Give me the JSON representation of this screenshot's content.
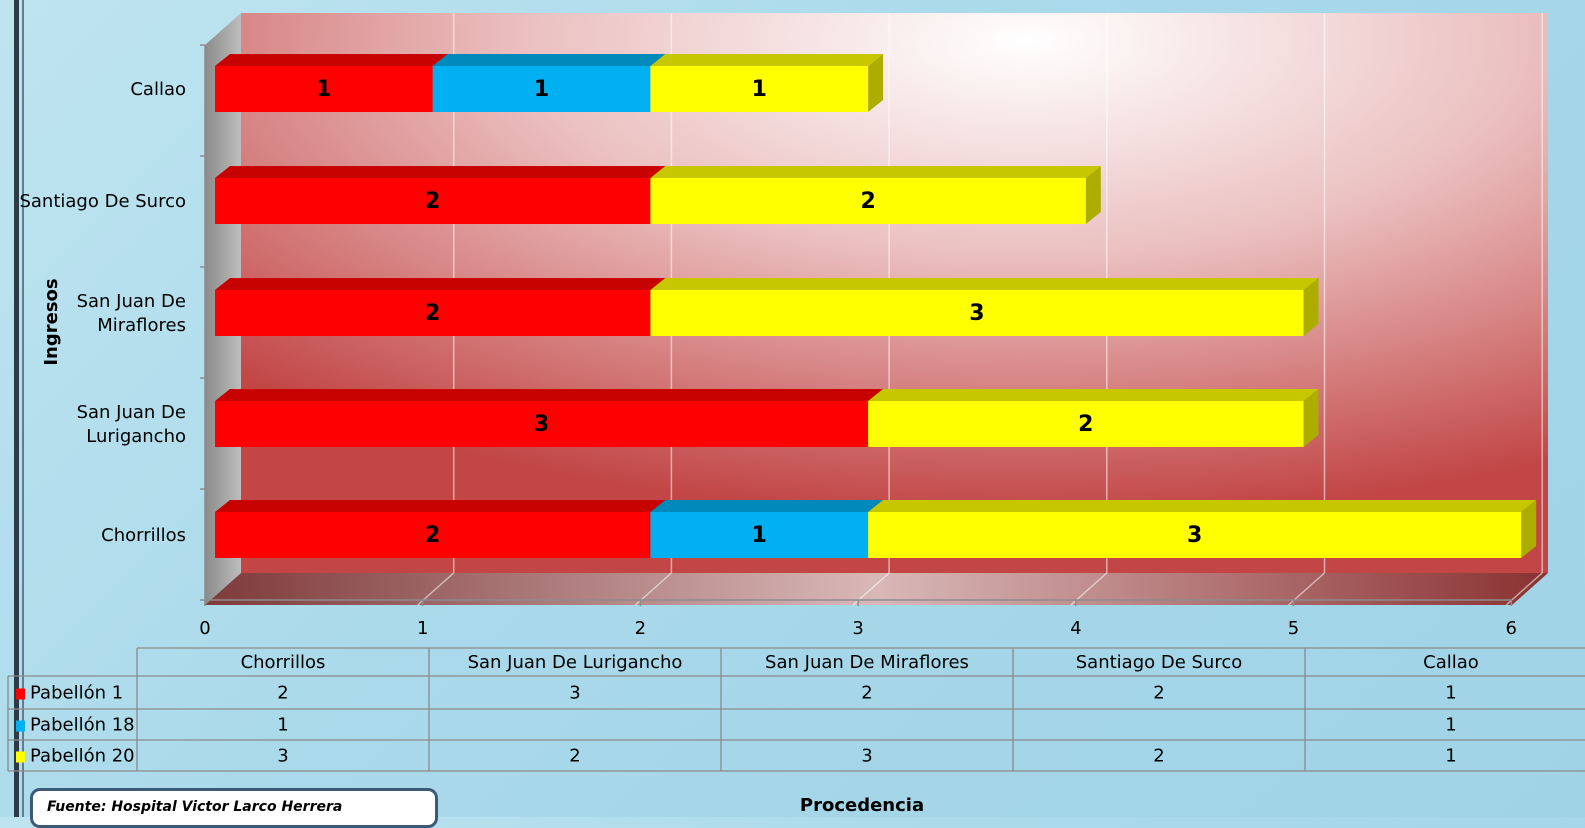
{
  "chart_data": {
    "type": "bar",
    "orientation": "horizontal",
    "stacked": true,
    "three_d": true,
    "categories": [
      "Chorrillos",
      "San Juan De Lurigancho",
      "San Juan De Miraflores",
      "Santiago De Surco",
      "Callao"
    ],
    "category_lines": [
      [
        "Chorrillos"
      ],
      [
        "San Juan De",
        "Lurigancho"
      ],
      [
        "San Juan De",
        "Miraflores"
      ],
      [
        "Santiago De Surco"
      ],
      [
        "Callao"
      ]
    ],
    "series": [
      {
        "name": "Pabellón 1",
        "color": "#ff0000",
        "values": [
          2,
          3,
          2,
          2,
          1
        ]
      },
      {
        "name": "Pabellón 18",
        "color": "#00b0f0",
        "values": [
          1,
          null,
          null,
          null,
          1
        ]
      },
      {
        "name": "Pabellón 20",
        "color": "#ffff00",
        "values": [
          3,
          2,
          3,
          2,
          1
        ]
      }
    ],
    "xlim": [
      0,
      6
    ],
    "xticks": [
      0,
      1,
      2,
      3,
      4,
      5,
      6
    ],
    "ylabel": "Ingresos",
    "xlabel": "Procedencia",
    "grid": true,
    "data_table": true
  },
  "source_note": "Fuente: Hospital Victor Larco Herrera"
}
